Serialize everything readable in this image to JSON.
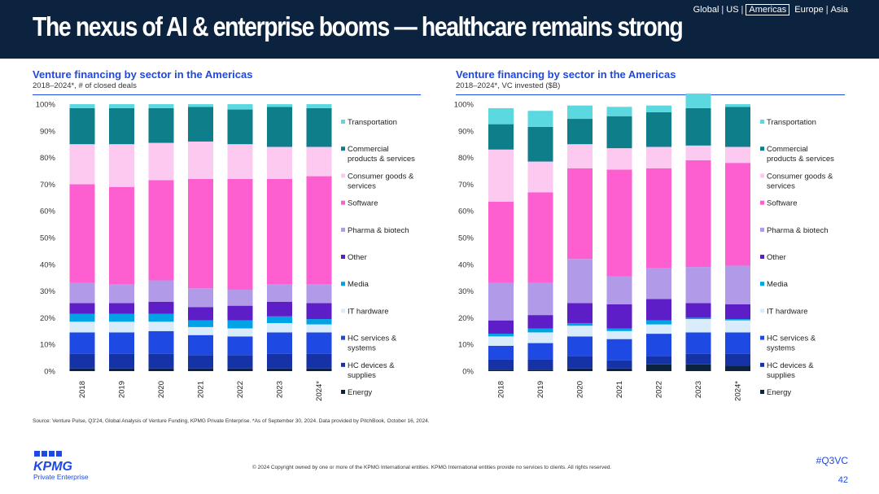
{
  "header": {
    "title": "The nexus of AI & enterprise booms — healthcare remains strong",
    "regions": [
      "Global",
      "US",
      "Americas",
      "Europe",
      "Asia"
    ],
    "selected_region": "Americas"
  },
  "colors": {
    "header_bg": "#0c2340",
    "accent": "#1e49e2",
    "sectors": {
      "Energy": "#0c2340",
      "HC devices & supplies": "#1532a6",
      "HC services & systems": "#1e49e2",
      "IT hardware": "#d9ecfb",
      "Media": "#00a3e6",
      "Other": "#5e1ec7",
      "Pharma & biotech": "#b19ae8",
      "Software": "#fd5ed0",
      "Consumer goods & services": "#fccaf0",
      "Commercial products & services": "#0e7f8a",
      "Transportation": "#5bd8e0"
    }
  },
  "chart_data": [
    {
      "type": "bar",
      "stacked": true,
      "title": "Venture financing by sector in the Americas",
      "subtitle": "2018–2024*, # of closed deals",
      "categories": [
        "2018",
        "2019",
        "2020",
        "2021",
        "2022",
        "2023",
        "2024*"
      ],
      "ylim": [
        0,
        100
      ],
      "yticks": [
        "0%",
        "10%",
        "20%",
        "30%",
        "40%",
        "50%",
        "60%",
        "70%",
        "80%",
        "90%",
        "100%"
      ],
      "series": [
        {
          "name": "Energy",
          "values": [
            1,
            1,
            1,
            1,
            1,
            1,
            1
          ]
        },
        {
          "name": "HC devices & supplies",
          "values": [
            5.5,
            5.5,
            5.5,
            5,
            5,
            5.5,
            5.5
          ]
        },
        {
          "name": "HC services & systems",
          "values": [
            8,
            8,
            8.5,
            7.5,
            7,
            8,
            8
          ]
        },
        {
          "name": "IT hardware",
          "values": [
            4,
            4,
            3.5,
            3,
            3,
            3.5,
            3
          ]
        },
        {
          "name": "Media",
          "values": [
            3,
            3,
            3,
            2.5,
            3,
            2.5,
            2
          ]
        },
        {
          "name": "Other",
          "values": [
            4,
            4,
            4.5,
            5,
            5.5,
            5.5,
            6
          ]
        },
        {
          "name": "Pharma & biotech",
          "values": [
            7.5,
            7,
            8,
            7,
            6,
            6.5,
            7
          ]
        },
        {
          "name": "Software",
          "values": [
            37,
            36.5,
            37.5,
            41,
            41.5,
            39.5,
            40.5
          ]
        },
        {
          "name": "Consumer goods & services",
          "values": [
            15,
            16,
            14,
            14,
            13,
            12,
            11
          ]
        },
        {
          "name": "Commercial products & services",
          "values": [
            13.5,
            13.5,
            13,
            13,
            13,
            15,
            14.5
          ]
        },
        {
          "name": "Transportation",
          "values": [
            1.5,
            1.5,
            1.5,
            1,
            2,
            1,
            1.5
          ]
        }
      ]
    },
    {
      "type": "bar",
      "stacked": true,
      "title": "Venture financing by sector in the Americas",
      "subtitle": "2018–2024*, VC invested ($B)",
      "categories": [
        "2018",
        "2019",
        "2020",
        "2021",
        "2022",
        "2023",
        "2024*"
      ],
      "ylim": [
        0,
        100
      ],
      "yticks": [
        "0%",
        "10%",
        "20%",
        "30%",
        "40%",
        "50%",
        "60%",
        "70%",
        "80%",
        "90%",
        "100%"
      ],
      "series": [
        {
          "name": "Energy",
          "values": [
            0.5,
            0.5,
            1,
            1,
            2.5,
            2.5,
            2
          ]
        },
        {
          "name": "HC devices & supplies",
          "values": [
            4,
            4,
            4.5,
            3,
            3,
            4,
            4.5
          ]
        },
        {
          "name": "HC services & systems",
          "values": [
            5,
            6,
            7.5,
            8,
            8.5,
            8,
            8
          ]
        },
        {
          "name": "IT hardware",
          "values": [
            3.5,
            4,
            4,
            3,
            3.5,
            5,
            4.5
          ]
        },
        {
          "name": "Media",
          "values": [
            1,
            1.5,
            1,
            1,
            1.5,
            0.5,
            0.5
          ]
        },
        {
          "name": "Other",
          "values": [
            5,
            5,
            7.5,
            9,
            8,
            5.5,
            5.5
          ]
        },
        {
          "name": "Pharma & biotech",
          "values": [
            14,
            12,
            16.5,
            10.5,
            11.5,
            13.5,
            14.5
          ]
        },
        {
          "name": "Software",
          "values": [
            30.5,
            34,
            34,
            40,
            37.5,
            40,
            38.5
          ]
        },
        {
          "name": "Consumer goods & services",
          "values": [
            19.5,
            11.5,
            9,
            8,
            8,
            5.5,
            6
          ]
        },
        {
          "name": "Commercial products & services",
          "values": [
            9.5,
            13,
            9.5,
            12,
            13,
            14,
            15
          ]
        },
        {
          "name": "Transportation",
          "values": [
            6,
            6,
            5,
            3.5,
            2.5,
            5.5,
            1
          ]
        }
      ]
    }
  ],
  "legend": {
    "items": [
      {
        "label_lines": [
          "Transportation"
        ],
        "key": "Transportation"
      },
      {
        "label_lines": [
          "Commercial",
          "products & services"
        ],
        "key": "Commercial products & services"
      },
      {
        "label_lines": [
          "Consumer goods &",
          "services"
        ],
        "key": "Consumer goods & services"
      },
      {
        "label_lines": [
          "Software"
        ],
        "key": "Software"
      },
      {
        "label_lines": [
          "Pharma & biotech"
        ],
        "key": "Pharma & biotech"
      },
      {
        "label_lines": [
          "Other"
        ],
        "key": "Other"
      },
      {
        "label_lines": [
          "Media"
        ],
        "key": "Media"
      },
      {
        "label_lines": [
          "IT hardware"
        ],
        "key": "IT hardware"
      },
      {
        "label_lines": [
          "HC services &",
          "systems"
        ],
        "key": "HC services & systems"
      },
      {
        "label_lines": [
          "HC devices &",
          "supplies"
        ],
        "key": "HC devices & supplies"
      },
      {
        "label_lines": [
          "Energy"
        ],
        "key": "Energy"
      }
    ]
  },
  "footer": {
    "source": "Source: Venture Pulse, Q3'24, Global Analysis of Venture Funding, KPMG Private Enterprise. *As of September 30, 2024. Data provided by PitchBook, October 16, 2024.",
    "copyright": "© 2024 Copyright owned by one or more of the KPMG International entities. KPMG International entities provide no services to clients. All rights reserved.",
    "logo_text": "KPMG",
    "logo_sub": "Private Enterprise",
    "hashtag": "#Q3VC",
    "page": "42"
  }
}
